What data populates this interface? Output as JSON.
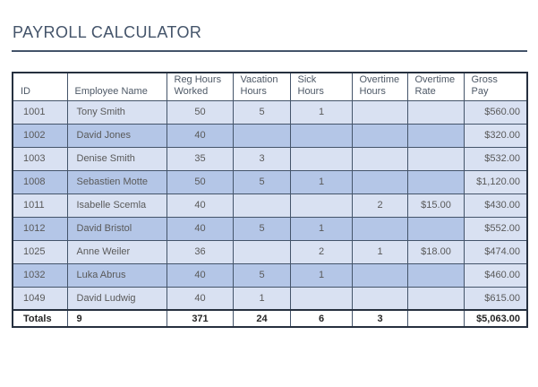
{
  "title": "PAYROLL CALCULATOR",
  "colors": {
    "title": "#44546A",
    "rule": "#44546A",
    "row_light": "#D9E1F2",
    "row_dark": "#B4C6E7",
    "border": "#44546A",
    "heavy_border": "#26303F",
    "body_text": "#595959",
    "header_text": "#4D5866",
    "totals_text": "#262626",
    "background": "#FFFFFF"
  },
  "table": {
    "headers": {
      "id": "ID",
      "name": "Employee Name",
      "reg": "Reg Hours\nWorked",
      "vacation": "Vacation\nHours",
      "sick": "Sick\nHours",
      "ot_hours": "Overtime\nHours",
      "ot_rate": "Overtime\nRate",
      "gross": "Gross\nPay"
    },
    "rows": [
      {
        "id": "1001",
        "name": "Tony Smith",
        "reg": "50",
        "vacation": "5",
        "sick": "1",
        "ot_hours": "",
        "ot_rate": "",
        "gross": "$560.00"
      },
      {
        "id": "1002",
        "name": "David Jones",
        "reg": "40",
        "vacation": "",
        "sick": "",
        "ot_hours": "",
        "ot_rate": "",
        "gross": "$320.00"
      },
      {
        "id": "1003",
        "name": "Denise Smith",
        "reg": "35",
        "vacation": "3",
        "sick": "",
        "ot_hours": "",
        "ot_rate": "",
        "gross": "$532.00"
      },
      {
        "id": "1008",
        "name": "Sebastien Motte",
        "reg": "50",
        "vacation": "5",
        "sick": "1",
        "ot_hours": "",
        "ot_rate": "",
        "gross": "$1,120.00"
      },
      {
        "id": "1011",
        "name": "Isabelle Scemla",
        "reg": "40",
        "vacation": "",
        "sick": "",
        "ot_hours": "2",
        "ot_rate": "$15.00",
        "gross": "$430.00"
      },
      {
        "id": "1012",
        "name": "David Bristol",
        "reg": "40",
        "vacation": "5",
        "sick": "1",
        "ot_hours": "",
        "ot_rate": "",
        "gross": "$552.00"
      },
      {
        "id": "1025",
        "name": "Anne Weiler",
        "reg": "36",
        "vacation": "",
        "sick": "2",
        "ot_hours": "1",
        "ot_rate": "$18.00",
        "gross": "$474.00"
      },
      {
        "id": "1032",
        "name": "Luka Abrus",
        "reg": "40",
        "vacation": "5",
        "sick": "1",
        "ot_hours": "",
        "ot_rate": "",
        "gross": "$460.00"
      },
      {
        "id": "1049",
        "name": "David Ludwig",
        "reg": "40",
        "vacation": "1",
        "sick": "",
        "ot_hours": "",
        "ot_rate": "",
        "gross": "$615.00"
      }
    ],
    "totals": {
      "label": "Totals",
      "employee_count": "9",
      "reg": "371",
      "vacation": "24",
      "sick": "6",
      "ot_hours": "3",
      "ot_rate": "",
      "gross": "$5,063.00"
    }
  }
}
